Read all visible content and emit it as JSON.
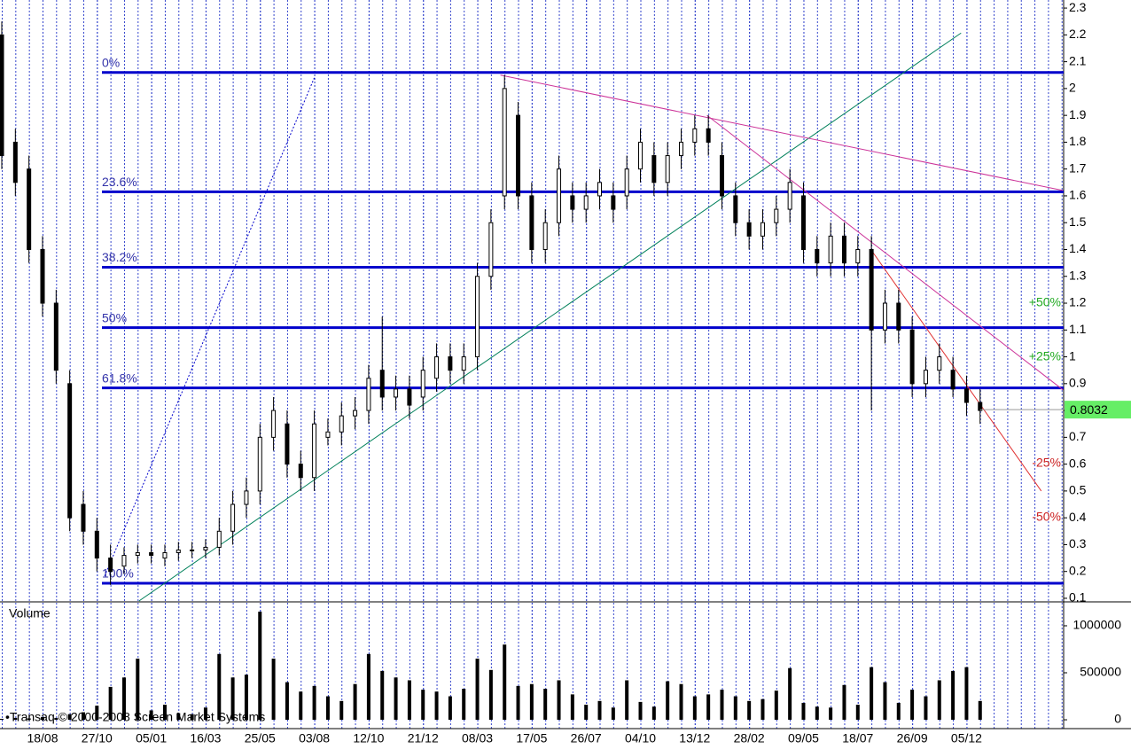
{
  "chart_data": [
    {
      "type": "candlestick",
      "categories": [
        null,
        null,
        null,
        "18/08",
        null,
        null,
        null,
        "27/10",
        null,
        null,
        null,
        "05/01",
        null,
        null,
        null,
        "16/03",
        null,
        null,
        null,
        "25/05",
        null,
        null,
        null,
        "03/08",
        null,
        null,
        null,
        "12/10",
        null,
        null,
        null,
        "21/12",
        null,
        null,
        null,
        "08/03",
        null,
        null,
        null,
        "17/05",
        null,
        null,
        null,
        "26/07",
        null,
        null,
        null,
        "04/10",
        null,
        null,
        null,
        "13/12",
        null,
        null,
        null,
        "28/02",
        null,
        null,
        null,
        "09/05",
        null,
        null,
        null,
        "18/07",
        null,
        null,
        null,
        "26/09",
        null,
        null,
        null,
        "05/12",
        null
      ],
      "open": [
        2.2,
        1.8,
        1.7,
        1.4,
        1.2,
        0.9,
        0.45,
        0.35,
        0.25,
        0.22,
        0.26,
        0.27,
        0.25,
        0.27,
        0.28,
        0.28,
        0.29,
        0.35,
        0.45,
        0.5,
        0.7,
        0.75,
        0.6,
        0.55,
        0.7,
        0.72,
        0.78,
        0.8,
        0.95,
        0.85,
        0.88,
        0.85,
        0.92,
        1.0,
        0.95,
        1.0,
        1.3,
        1.6,
        1.9,
        1.6,
        1.4,
        1.5,
        1.6,
        1.55,
        1.6,
        1.6,
        1.6,
        1.7,
        1.75,
        1.65,
        1.75,
        1.8,
        1.85,
        1.75,
        1.6,
        1.5,
        1.45,
        1.5,
        1.55,
        1.6,
        1.4,
        1.35,
        1.45,
        1.35,
        1.4,
        1.1,
        1.2,
        1.1,
        0.9,
        0.95,
        0.95,
        0.88,
        0.83
      ],
      "high": [
        2.25,
        1.85,
        1.75,
        1.45,
        1.25,
        0.95,
        0.5,
        0.4,
        0.3,
        0.29,
        0.3,
        0.3,
        0.3,
        0.31,
        0.31,
        0.32,
        0.4,
        0.5,
        0.55,
        0.75,
        0.85,
        0.8,
        0.65,
        0.8,
        0.77,
        0.83,
        0.85,
        0.97,
        1.15,
        0.93,
        0.93,
        1.0,
        1.05,
        1.05,
        1.05,
        1.35,
        1.55,
        2.05,
        1.95,
        1.65,
        1.55,
        1.75,
        1.65,
        1.65,
        1.7,
        1.65,
        1.75,
        1.85,
        1.8,
        1.8,
        1.85,
        1.9,
        1.9,
        1.8,
        1.65,
        1.55,
        1.55,
        1.6,
        1.7,
        1.65,
        1.45,
        1.5,
        1.5,
        1.45,
        1.45,
        1.25,
        1.25,
        1.15,
        1.0,
        1.05,
        1.0,
        0.93,
        0.88
      ],
      "low": [
        1.7,
        1.6,
        1.35,
        1.15,
        0.9,
        0.35,
        0.3,
        0.2,
        0.15,
        0.19,
        0.23,
        0.23,
        0.22,
        0.24,
        0.25,
        0.25,
        0.26,
        0.3,
        0.4,
        0.45,
        0.65,
        0.55,
        0.5,
        0.5,
        0.67,
        0.67,
        0.73,
        0.75,
        0.8,
        0.8,
        0.77,
        0.8,
        0.87,
        0.9,
        0.9,
        0.95,
        1.25,
        1.55,
        1.55,
        1.35,
        1.35,
        1.45,
        1.5,
        1.5,
        1.55,
        1.5,
        1.55,
        1.65,
        1.6,
        1.6,
        1.7,
        1.75,
        1.75,
        1.55,
        1.45,
        1.4,
        1.4,
        1.45,
        1.5,
        1.35,
        1.3,
        1.3,
        1.3,
        1.3,
        0.8,
        1.05,
        1.05,
        0.85,
        0.85,
        0.9,
        0.85,
        0.78,
        0.75
      ],
      "close": [
        1.75,
        1.65,
        1.4,
        1.2,
        0.95,
        0.4,
        0.35,
        0.25,
        0.2,
        0.26,
        0.27,
        0.26,
        0.27,
        0.28,
        0.28,
        0.29,
        0.35,
        0.45,
        0.5,
        0.7,
        0.8,
        0.6,
        0.55,
        0.75,
        0.72,
        0.78,
        0.8,
        0.92,
        0.85,
        0.88,
        0.82,
        0.95,
        1.0,
        0.95,
        1.0,
        1.3,
        1.5,
        2.0,
        1.6,
        1.4,
        1.5,
        1.7,
        1.55,
        1.6,
        1.65,
        1.55,
        1.7,
        1.8,
        1.65,
        1.75,
        1.8,
        1.85,
        1.8,
        1.6,
        1.5,
        1.45,
        1.5,
        1.55,
        1.65,
        1.4,
        1.35,
        1.45,
        1.35,
        1.4,
        1.1,
        1.2,
        1.1,
        0.9,
        0.95,
        1.0,
        0.88,
        0.83,
        0.8
      ],
      "ylim": [
        0.09,
        2.33
      ],
      "yticks": [
        0.1,
        0.2,
        0.3,
        0.4,
        0.5,
        0.6,
        0.7,
        0.8,
        0.9,
        1.0,
        1.1,
        1.2,
        1.3,
        1.4,
        1.5,
        1.6,
        1.7,
        1.8,
        1.9,
        2.0,
        2.1,
        2.2,
        2.3
      ],
      "levels": [
        {
          "label": "0%",
          "value": 2.06
        },
        {
          "label": "23.6%",
          "value": 1.615
        },
        {
          "label": "38.2%",
          "value": 1.334
        },
        {
          "label": "50%",
          "value": 1.109
        },
        {
          "label": "61.8%",
          "value": 0.884
        },
        {
          "label": "100%",
          "value": 0.156
        }
      ],
      "level_color": "#0000cc",
      "trendlines": [
        {
          "color": "#0000cc",
          "style": "dotted",
          "from": [
            7.57,
            0.183
          ],
          "to": [
            23.0,
            2.04
          ]
        },
        {
          "color": "#00805a",
          "style": "solid",
          "from": [
            10.1,
            0.09
          ],
          "to": [
            70.6,
            2.207
          ]
        },
        {
          "color": "#cc3399",
          "style": "solid",
          "from": [
            36.7,
            2.05
          ],
          "to": [
            78.1,
            1.62
          ]
        },
        {
          "color": "#cc3399",
          "style": "solid",
          "from": [
            51.9,
            1.9
          ],
          "to": [
            78.1,
            0.877
          ]
        },
        {
          "color": "#e03030",
          "style": "solid",
          "from": [
            64.1,
            1.39
          ],
          "to": [
            76.5,
            0.5
          ]
        }
      ],
      "last_price": 0.8032,
      "last_price_color": "#66ee66",
      "annotations": [
        {
          "text": "+50%",
          "color": "#22aa22"
        },
        {
          "text": "+25%",
          "color": "#22aa22"
        },
        {
          "text": "-25%",
          "color": "#cc2222"
        },
        {
          "text": "-50%",
          "color": "#cc2222"
        }
      ]
    },
    {
      "type": "bar",
      "title": "Volume",
      "color": "#000000",
      "values": [
        10000,
        20000,
        15000,
        30000,
        20000,
        60000,
        80000,
        150000,
        350000,
        450000,
        650000,
        100000,
        160000,
        70000,
        60000,
        130000,
        700000,
        450000,
        480000,
        1150000,
        650000,
        400000,
        300000,
        360000,
        250000,
        200000,
        380000,
        700000,
        520000,
        450000,
        420000,
        320000,
        300000,
        250000,
        330000,
        650000,
        530000,
        800000,
        360000,
        380000,
        330000,
        420000,
        270000,
        160000,
        200000,
        130000,
        420000,
        190000,
        140000,
        410000,
        380000,
        250000,
        270000,
        320000,
        250000,
        200000,
        220000,
        310000,
        550000,
        180000,
        140000,
        130000,
        370000,
        160000,
        560000,
        400000,
        180000,
        320000,
        250000,
        420000,
        520000,
        560000,
        200000
      ],
      "ylim": [
        -94000,
        1245000
      ],
      "yticks": [
        0,
        500000,
        1000000
      ]
    }
  ],
  "credit": "•Transaq © 2000-2008 Screen Market Systems"
}
